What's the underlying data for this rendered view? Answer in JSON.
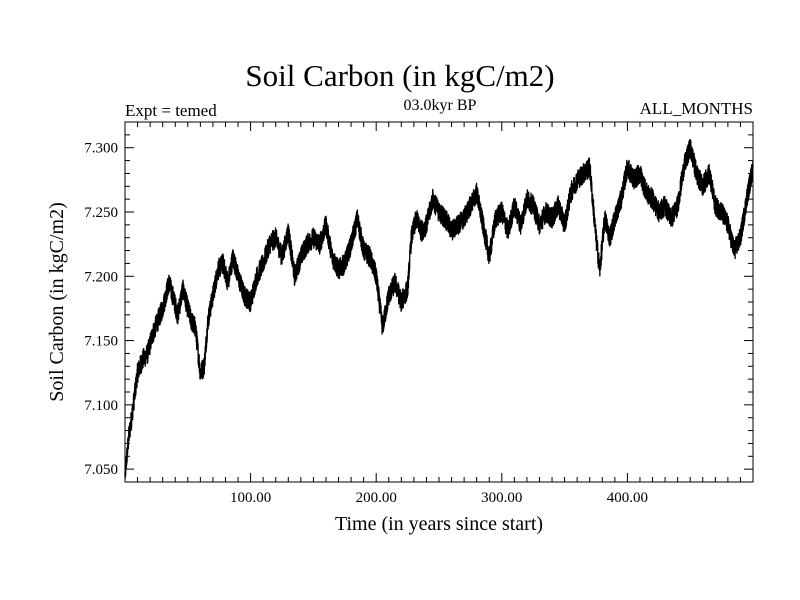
{
  "chart_data": {
    "type": "line",
    "title": "Soil Carbon (in kgC/m2)",
    "subtitle_left": "Expt = temed",
    "subtitle_center": "03.0kyr BP",
    "subtitle_right": "ALL_MONTHS",
    "xlabel": "Time (in years since start)",
    "ylabel": "Soil Carbon (in kgC/m2)",
    "xlim": [
      0,
      500
    ],
    "ylim": [
      7.04,
      7.32
    ],
    "xticks": [
      100,
      200,
      300,
      400
    ],
    "xtick_labels": [
      "100.00",
      "200.00",
      "300.00",
      "400.00"
    ],
    "yticks": [
      7.05,
      7.1,
      7.15,
      7.2,
      7.25,
      7.3
    ],
    "ytick_labels": [
      "7.050",
      "7.100",
      "7.150",
      "7.200",
      "7.250",
      "7.300"
    ],
    "series": [
      {
        "name": "Soil Carbon",
        "x": [
          0,
          3,
          6,
          10,
          14,
          18,
          22,
          26,
          30,
          35,
          38,
          42,
          46,
          50,
          53,
          56,
          60,
          63,
          66,
          70,
          74,
          78,
          82,
          86,
          90,
          95,
          100,
          105,
          110,
          115,
          120,
          125,
          130,
          135,
          140,
          145,
          150,
          155,
          160,
          165,
          170,
          175,
          180,
          185,
          190,
          195,
          200,
          205,
          210,
          215,
          220,
          225,
          228,
          232,
          236,
          240,
          245,
          250,
          255,
          260,
          265,
          270,
          275,
          280,
          285,
          290,
          295,
          300,
          305,
          310,
          315,
          320,
          325,
          330,
          335,
          340,
          345,
          350,
          355,
          360,
          365,
          370,
          375,
          378,
          382,
          386,
          390,
          395,
          400,
          405,
          410,
          415,
          420,
          425,
          430,
          435,
          440,
          445,
          450,
          455,
          460,
          465,
          470,
          475,
          480,
          485,
          490,
          495,
          500
        ],
        "values": [
          7.045,
          7.075,
          7.095,
          7.125,
          7.135,
          7.14,
          7.155,
          7.165,
          7.175,
          7.195,
          7.185,
          7.17,
          7.19,
          7.175,
          7.165,
          7.16,
          7.125,
          7.13,
          7.165,
          7.185,
          7.205,
          7.21,
          7.195,
          7.215,
          7.2,
          7.185,
          7.18,
          7.2,
          7.21,
          7.225,
          7.23,
          7.215,
          7.235,
          7.2,
          7.215,
          7.225,
          7.23,
          7.225,
          7.24,
          7.215,
          7.205,
          7.21,
          7.225,
          7.245,
          7.22,
          7.215,
          7.2,
          7.16,
          7.185,
          7.195,
          7.18,
          7.19,
          7.23,
          7.245,
          7.235,
          7.24,
          7.26,
          7.25,
          7.245,
          7.235,
          7.24,
          7.245,
          7.255,
          7.265,
          7.24,
          7.215,
          7.245,
          7.25,
          7.235,
          7.255,
          7.24,
          7.26,
          7.255,
          7.24,
          7.25,
          7.245,
          7.255,
          7.24,
          7.265,
          7.275,
          7.28,
          7.285,
          7.23,
          7.205,
          7.245,
          7.23,
          7.245,
          7.26,
          7.285,
          7.275,
          7.28,
          7.265,
          7.26,
          7.25,
          7.255,
          7.245,
          7.255,
          7.285,
          7.3,
          7.28,
          7.27,
          7.28,
          7.255,
          7.25,
          7.24,
          7.22,
          7.23,
          7.26,
          7.285
        ]
      }
    ]
  }
}
